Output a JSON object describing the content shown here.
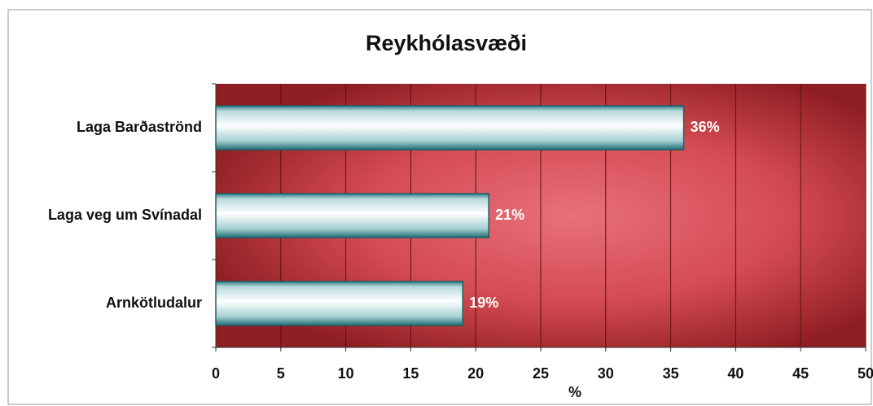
{
  "chart_data": {
    "type": "bar",
    "orientation": "horizontal",
    "title": "Reykhólasvæði",
    "categories": [
      "Laga Barðaströnd",
      "Laga veg um Svínadal",
      "Arnkötludalur"
    ],
    "values": [
      36,
      21,
      19
    ],
    "value_labels": [
      "36%",
      "21%",
      "19%"
    ],
    "xlabel": "%",
    "xlim": [
      0,
      50
    ],
    "xticks": [
      0,
      5,
      10,
      15,
      20,
      25,
      30,
      35,
      40,
      45,
      50
    ],
    "grid": true
  }
}
